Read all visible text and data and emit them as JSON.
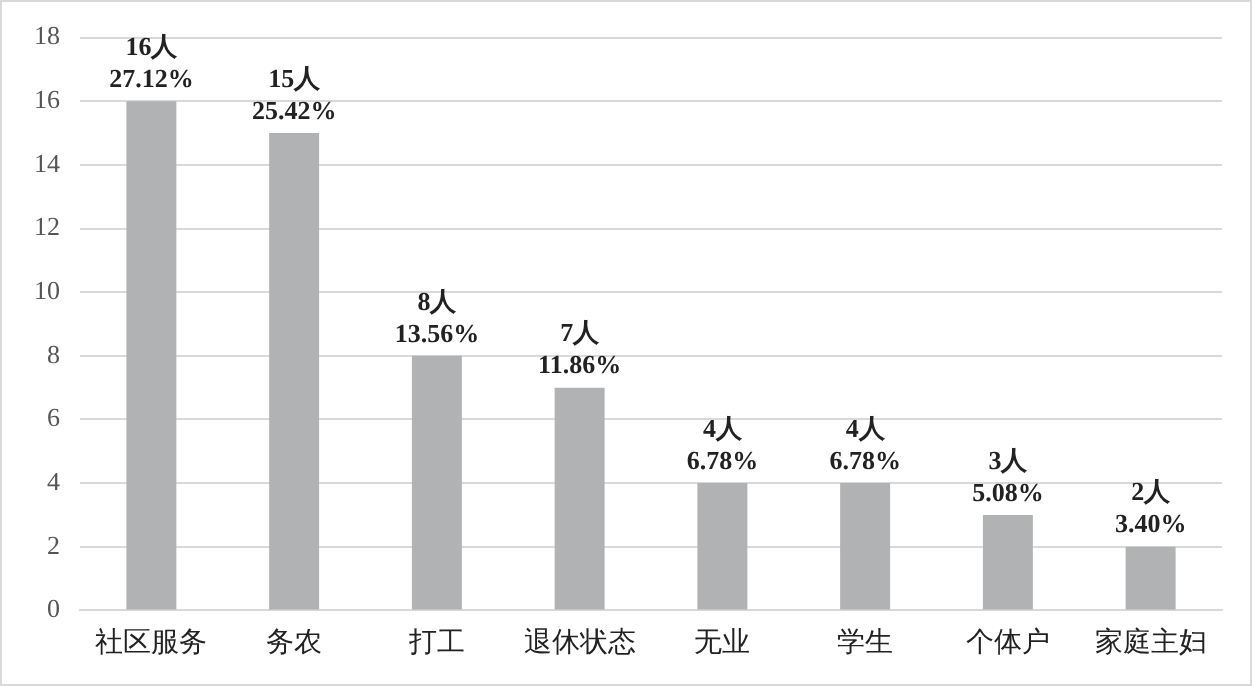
{
  "chart_data": {
    "type": "bar",
    "categories": [
      "社区服务",
      "务农",
      "打工",
      "退休状态",
      "无业",
      "学生",
      "个体户",
      "家庭主妇"
    ],
    "values": [
      16,
      15,
      8,
      7,
      4,
      4,
      3,
      2
    ],
    "value_labels": [
      "16人\n27.12%",
      "15人\n25.42%",
      "8人\n13.56%",
      "7人\n11.86%",
      "4人\n6.78%",
      "4人\n6.78%",
      "3人\n5.08%",
      "2人\n3.40%"
    ],
    "color": "#b1b2b4",
    "ylim": [
      0,
      18
    ],
    "yticks": [
      0,
      2,
      4,
      6,
      8,
      10,
      12,
      14,
      16,
      18
    ],
    "grid": "y"
  }
}
